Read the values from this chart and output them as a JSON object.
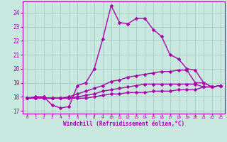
{
  "title": "",
  "xlabel": "Windchill (Refroidissement éolien,°C)",
  "xlim": [
    -0.5,
    23.5
  ],
  "ylim": [
    16.8,
    24.8
  ],
  "yticks": [
    17,
    18,
    19,
    20,
    21,
    22,
    23,
    24
  ],
  "xticks": [
    0,
    1,
    2,
    3,
    4,
    5,
    6,
    7,
    8,
    9,
    10,
    11,
    12,
    13,
    14,
    15,
    16,
    17,
    18,
    19,
    20,
    21,
    22,
    23
  ],
  "bg_color": "#c8e8e0",
  "grid_color": "#a0c8c0",
  "line_color": "#aa00aa",
  "series": [
    {
      "x": [
        0,
        1,
        2,
        3,
        4,
        5,
        6,
        7,
        8,
        9,
        10,
        11,
        12,
        13,
        14,
        15,
        16,
        17,
        18,
        19,
        20,
        21,
        22,
        23
      ],
      "y": [
        17.9,
        18.0,
        18.0,
        17.4,
        17.2,
        17.3,
        18.8,
        19.0,
        20.0,
        22.1,
        24.5,
        23.3,
        23.2,
        23.6,
        23.6,
        22.8,
        22.3,
        21.0,
        20.7,
        20.0,
        19.9,
        19.0,
        18.7,
        18.8
      ],
      "marker": "D",
      "markersize": 2.5,
      "linewidth": 1.0
    },
    {
      "x": [
        0,
        1,
        2,
        3,
        4,
        5,
        6,
        7,
        8,
        9,
        10,
        11,
        12,
        13,
        14,
        15,
        16,
        17,
        18,
        19,
        20,
        21,
        22,
        23
      ],
      "y": [
        17.9,
        17.9,
        17.9,
        17.9,
        17.9,
        18.0,
        18.2,
        18.4,
        18.6,
        18.8,
        19.1,
        19.2,
        19.4,
        19.5,
        19.6,
        19.7,
        19.8,
        19.8,
        19.9,
        19.9,
        19.0,
        19.0,
        18.7,
        18.8
      ],
      "marker": "D",
      "markersize": 2.5,
      "linewidth": 1.0
    },
    {
      "x": [
        0,
        1,
        2,
        3,
        4,
        5,
        6,
        7,
        8,
        9,
        10,
        11,
        12,
        13,
        14,
        15,
        16,
        17,
        18,
        19,
        20,
        21,
        22,
        23
      ],
      "y": [
        17.9,
        17.9,
        17.9,
        17.9,
        17.9,
        17.9,
        18.0,
        18.1,
        18.2,
        18.4,
        18.5,
        18.6,
        18.7,
        18.8,
        18.9,
        18.9,
        18.9,
        18.9,
        18.9,
        18.9,
        18.9,
        18.7,
        18.7,
        18.8
      ],
      "marker": "D",
      "markersize": 2.5,
      "linewidth": 1.0
    },
    {
      "x": [
        0,
        1,
        2,
        3,
        4,
        5,
        6,
        7,
        8,
        9,
        10,
        11,
        12,
        13,
        14,
        15,
        16,
        17,
        18,
        19,
        20,
        21,
        22,
        23
      ],
      "y": [
        17.9,
        17.9,
        17.9,
        17.9,
        17.9,
        17.9,
        17.9,
        17.9,
        18.0,
        18.1,
        18.2,
        18.2,
        18.3,
        18.3,
        18.3,
        18.4,
        18.4,
        18.4,
        18.5,
        18.5,
        18.5,
        18.7,
        18.7,
        18.8
      ],
      "marker": "D",
      "markersize": 2.5,
      "linewidth": 1.0
    }
  ]
}
